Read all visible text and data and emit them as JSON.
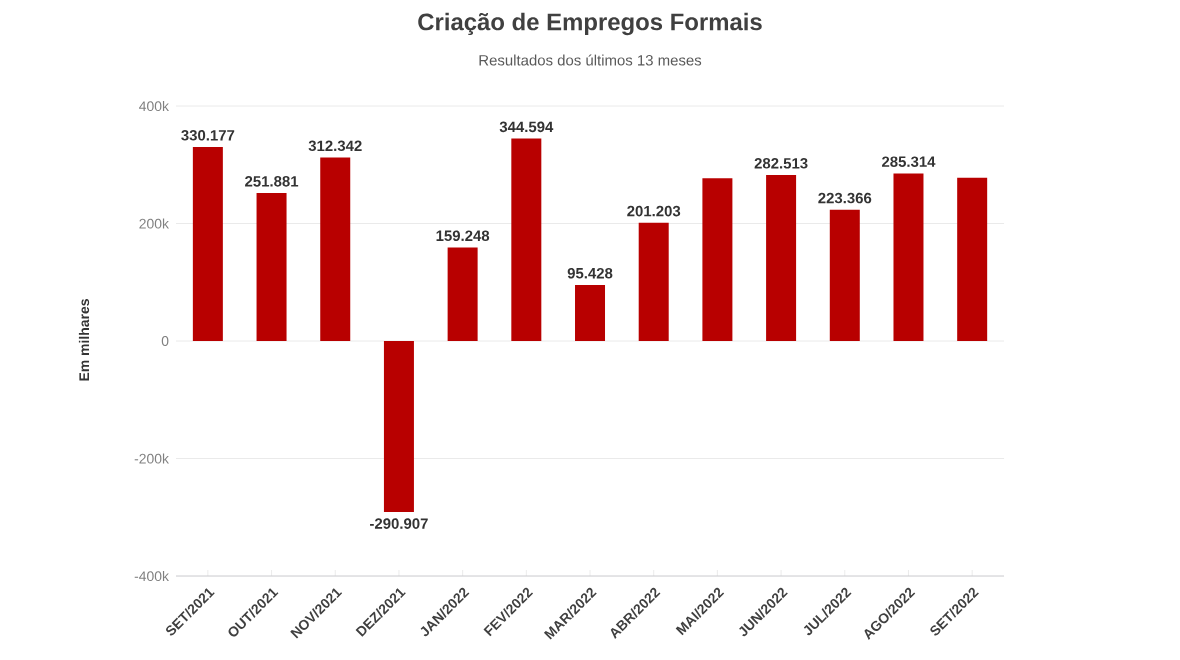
{
  "chart_data": {
    "type": "bar",
    "title": "Criação de Empregos Formais",
    "subtitle": "Resultados dos últimos 13 meses",
    "ylabel": "Em milhares",
    "categories": [
      "SET/2021",
      "OUT/2021",
      "NOV/2021",
      "DEZ/2021",
      "JAN/2022",
      "FEV/2022",
      "MAR/2022",
      "ABR/2022",
      "MAI/2022",
      "JUN/2022",
      "JUL/2022",
      "AGO/2022",
      "SET/2022"
    ],
    "values": [
      330177,
      251881,
      312342,
      -290907,
      159248,
      344594,
      95428,
      201203,
      277000,
      282513,
      223366,
      285314,
      278000
    ],
    "value_labels": [
      "330.177",
      "251.881",
      "312.342",
      "-290.907",
      "159.248",
      "344.594",
      "95.428",
      "201.203",
      null,
      "282.513",
      "223.366",
      "285.314",
      null
    ],
    "color": "#b80000",
    "ylim": [
      -400000,
      400000
    ],
    "yticks": [
      {
        "value": -400000,
        "label": "-400k"
      },
      {
        "value": -200000,
        "label": "-200k"
      },
      {
        "value": 0,
        "label": "0"
      },
      {
        "value": 200000,
        "label": "200k"
      },
      {
        "value": 400000,
        "label": "400k"
      }
    ],
    "grid": "y"
  }
}
